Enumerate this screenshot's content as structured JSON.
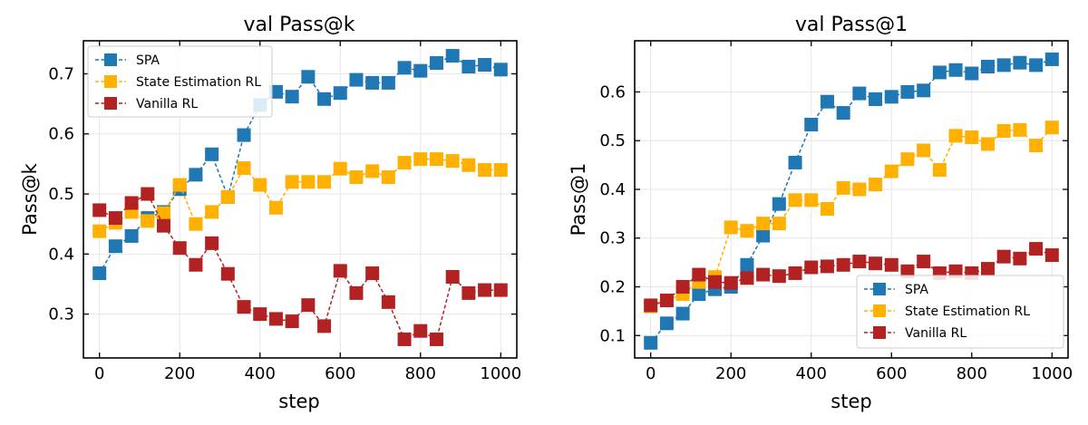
{
  "colors": {
    "spa": "#1f77b4",
    "ser": "#ffb000",
    "van": "#b22222"
  },
  "chart_data": [
    {
      "type": "line",
      "title": "val Pass@k",
      "xlabel": "step",
      "ylabel": "Pass@k",
      "xlim": [
        -40,
        1040
      ],
      "ylim": [
        0.227,
        0.755
      ],
      "xticks": [
        0,
        200,
        400,
        600,
        800,
        1000
      ],
      "xtick_labels": [
        "0",
        "200",
        "400",
        "600",
        "800",
        "1000"
      ],
      "yticks": [
        0.3,
        0.4,
        0.5,
        0.6,
        0.7
      ],
      "ytick_labels": [
        "0.3",
        "0.4",
        "0.5",
        "0.6",
        "0.7"
      ],
      "legend_position": "top-left",
      "x": [
        0,
        40,
        80,
        120,
        160,
        200,
        240,
        280,
        320,
        360,
        400,
        440,
        480,
        520,
        560,
        600,
        640,
        680,
        720,
        760,
        800,
        840,
        880,
        920,
        960,
        1000
      ],
      "series": [
        {
          "name": "SPA",
          "color_key": "spa",
          "values": [
            0.368,
            0.413,
            0.43,
            0.46,
            0.47,
            0.508,
            0.532,
            0.566,
            0.495,
            0.598,
            0.648,
            0.67,
            0.662,
            0.695,
            0.658,
            0.668,
            0.69,
            0.685,
            0.685,
            0.71,
            0.705,
            0.718,
            0.73,
            0.712,
            0.715,
            0.707
          ]
        },
        {
          "name": "State Estimation RL",
          "color_key": "ser",
          "values": [
            0.438,
            0.452,
            0.47,
            0.455,
            0.468,
            0.515,
            0.45,
            0.47,
            0.495,
            0.543,
            0.515,
            0.477,
            0.52,
            0.52,
            0.52,
            0.542,
            0.528,
            0.538,
            0.528,
            0.552,
            0.558,
            0.558,
            0.555,
            0.548,
            0.54,
            0.54
          ]
        },
        {
          "name": "Vanilla RL",
          "color_key": "van",
          "values": [
            0.473,
            0.46,
            0.485,
            0.5,
            0.447,
            0.41,
            0.382,
            0.418,
            0.367,
            0.312,
            0.3,
            0.292,
            0.288,
            0.315,
            0.28,
            0.372,
            0.335,
            0.368,
            0.32,
            0.258,
            0.272,
            0.258,
            0.362,
            0.335,
            0.34,
            0.34
          ]
        }
      ]
    },
    {
      "type": "line",
      "title": "val Pass@1",
      "xlabel": "step",
      "ylabel": "Pass@1",
      "xlim": [
        -40,
        1040
      ],
      "ylim": [
        0.054,
        0.705
      ],
      "xticks": [
        0,
        200,
        400,
        600,
        800,
        1000
      ],
      "xtick_labels": [
        "0",
        "200",
        "400",
        "600",
        "800",
        "1000"
      ],
      "yticks": [
        0.1,
        0.2,
        0.3,
        0.4,
        0.5,
        0.6
      ],
      "ytick_labels": [
        "0.1",
        "0.2",
        "0.3",
        "0.4",
        "0.5",
        "0.6"
      ],
      "legend_position": "bottom-right",
      "x": [
        0,
        40,
        80,
        120,
        160,
        200,
        240,
        280,
        320,
        360,
        400,
        440,
        480,
        520,
        560,
        600,
        640,
        680,
        720,
        760,
        800,
        840,
        880,
        920,
        960,
        1000
      ],
      "series": [
        {
          "name": "SPA",
          "color_key": "spa",
          "values": [
            0.085,
            0.125,
            0.145,
            0.185,
            0.195,
            0.2,
            0.245,
            0.305,
            0.37,
            0.455,
            0.533,
            0.58,
            0.557,
            0.597,
            0.585,
            0.59,
            0.6,
            0.603,
            0.64,
            0.645,
            0.638,
            0.652,
            0.655,
            0.66,
            0.655,
            0.667
          ]
        },
        {
          "name": "State Estimation RL",
          "color_key": "ser",
          "values": [
            0.16,
            0.172,
            0.185,
            0.21,
            0.22,
            0.322,
            0.315,
            0.33,
            0.33,
            0.378,
            0.378,
            0.36,
            0.403,
            0.4,
            0.41,
            0.437,
            0.462,
            0.48,
            0.44,
            0.51,
            0.507,
            0.493,
            0.52,
            0.522,
            0.49,
            0.527
          ]
        },
        {
          "name": "Vanilla RL",
          "color_key": "van",
          "values": [
            0.162,
            0.172,
            0.2,
            0.225,
            0.21,
            0.208,
            0.218,
            0.225,
            0.222,
            0.228,
            0.24,
            0.242,
            0.245,
            0.252,
            0.248,
            0.245,
            0.232,
            0.252,
            0.228,
            0.232,
            0.228,
            0.237,
            0.262,
            0.258,
            0.278,
            0.265
          ]
        }
      ]
    }
  ]
}
